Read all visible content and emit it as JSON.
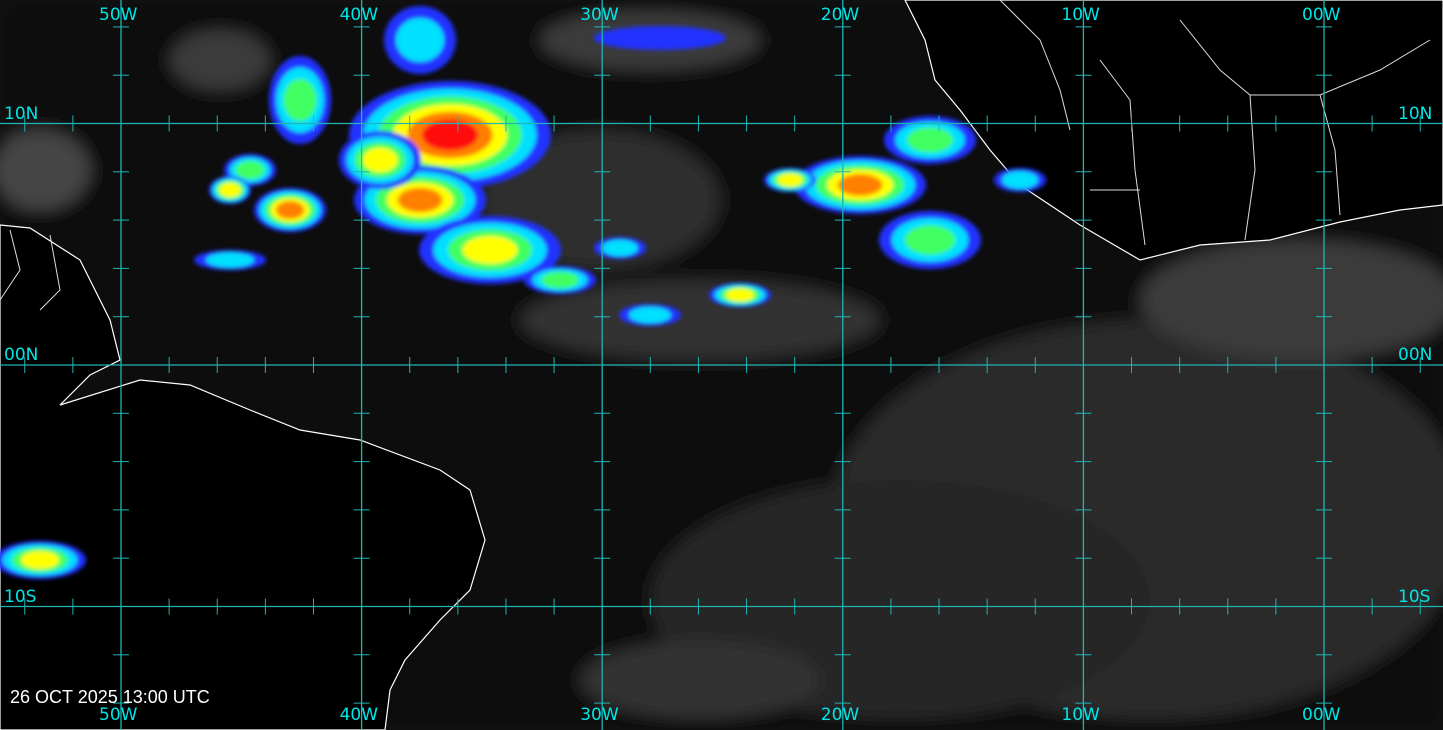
{
  "timestamp": "26 OCT 2025 13:00 UTC",
  "longitudes": [
    {
      "value": -50,
      "label": "50W"
    },
    {
      "value": -40,
      "label": "40W"
    },
    {
      "value": -30,
      "label": "30W"
    },
    {
      "value": -20,
      "label": "20W"
    },
    {
      "value": -10,
      "label": "10W"
    },
    {
      "value": 0,
      "label": "00W"
    }
  ],
  "latitudes": [
    {
      "value": 10,
      "label": "10N"
    },
    {
      "value": 0,
      "label": "00N"
    },
    {
      "value": -10,
      "label": "10S"
    }
  ],
  "tick_interval_degrees": 2,
  "colors": {
    "grid": "#1fb5b5",
    "labels": "#00e6e6",
    "coastline": "#ffffff",
    "land": "#000000"
  },
  "enhancement_palette": [
    "#2030ff",
    "#00e0ff",
    "#40ff60",
    "#ffff00",
    "#ff8000",
    "#ff1010"
  ]
}
